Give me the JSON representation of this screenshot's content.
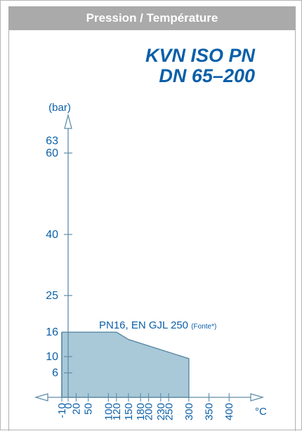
{
  "header": {
    "title": "Pression / Température"
  },
  "product": {
    "line1": "KVN ISO PN",
    "line2": "DN 65–200"
  },
  "colors": {
    "accent": "#0a5fa8",
    "fill": "#a9c9d9",
    "axis": "#5f8ea8",
    "text": "#0a5fa8"
  },
  "chart_data": {
    "type": "area",
    "title": "",
    "xlabel": "°C",
    "ylabel": "(bar)",
    "xlim": [
      -10,
      450
    ],
    "ylim": [
      0,
      70
    ],
    "x_ticks": [
      -10,
      0,
      20,
      50,
      100,
      120,
      150,
      180,
      200,
      230,
      250,
      300,
      350,
      400
    ],
    "y_ticks": [
      6,
      10,
      16,
      25,
      40,
      60,
      63
    ],
    "series": [
      {
        "name": "PN16, EN GJL 250",
        "annotation": "(Fonte*)",
        "x": [
          -10,
          120,
          150,
          300,
          300,
          -10
        ],
        "y": [
          16,
          16,
          14.2,
          9.5,
          0,
          0
        ]
      }
    ]
  }
}
